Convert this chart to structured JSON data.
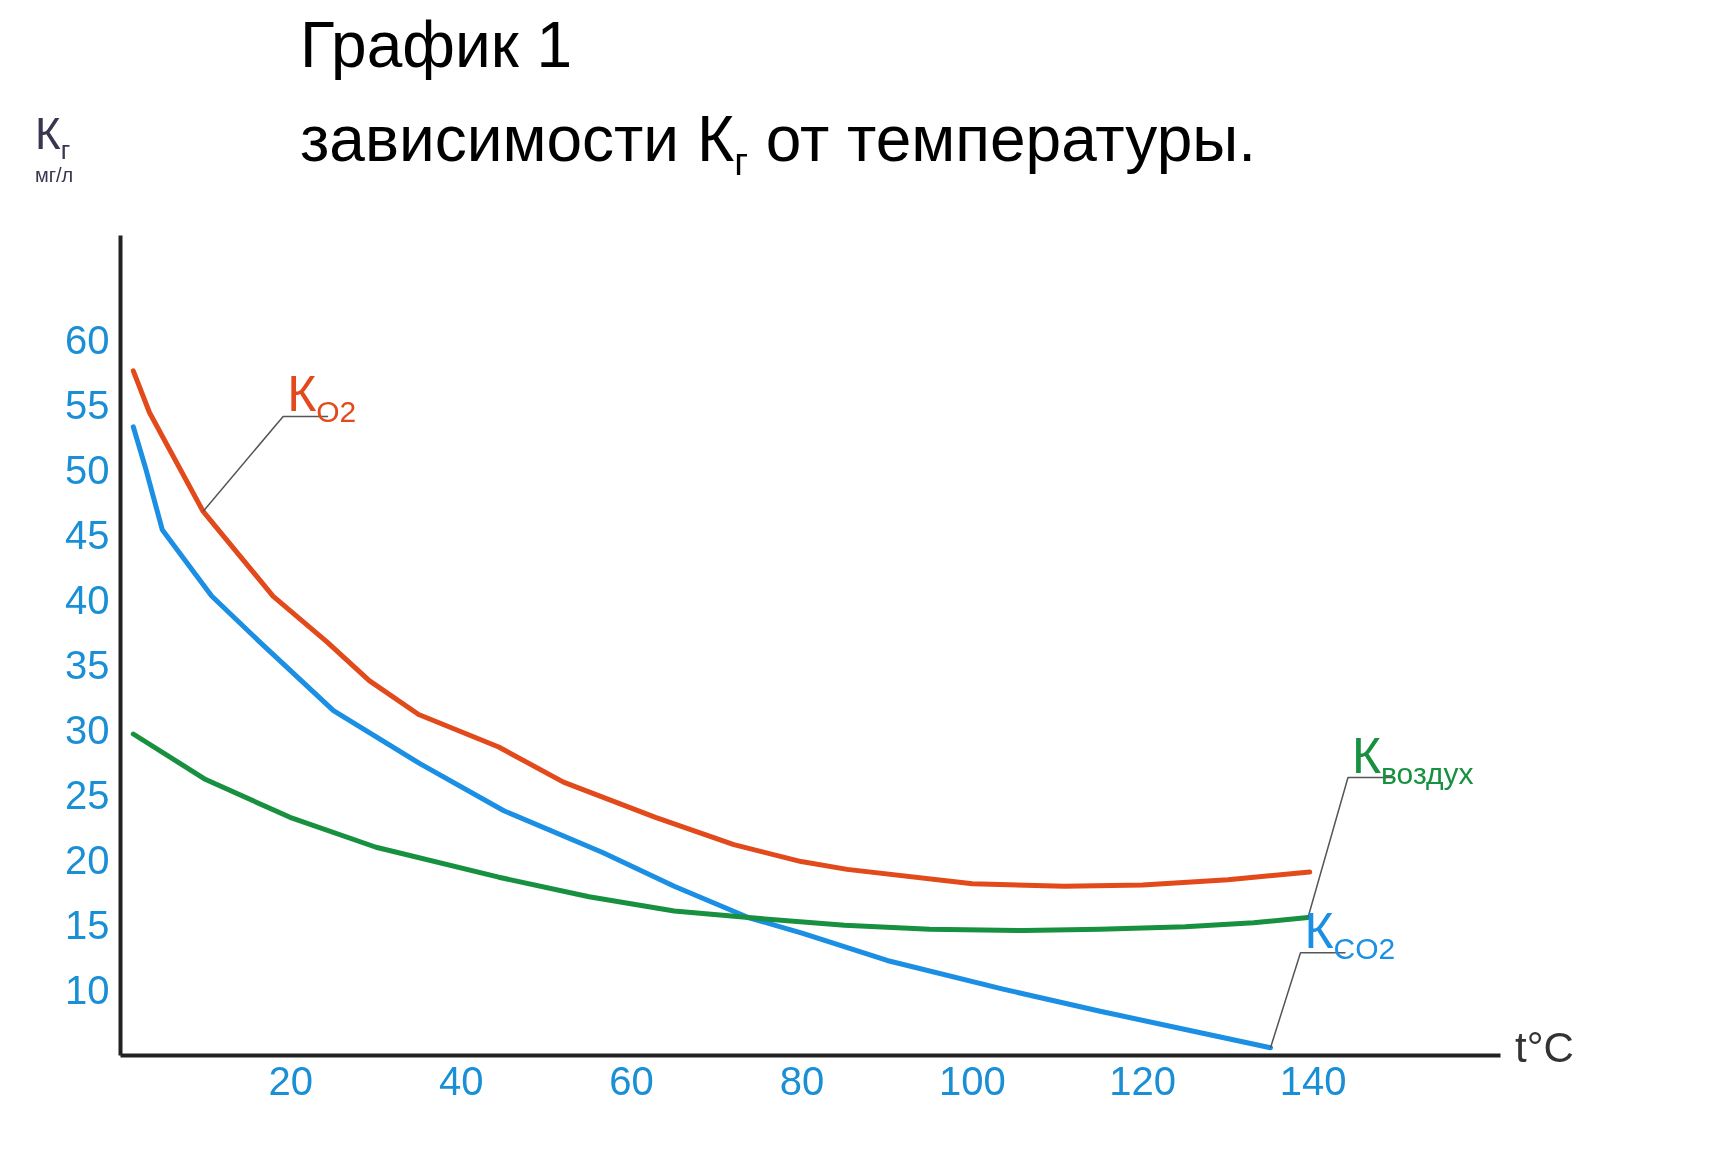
{
  "chart_data": {
    "type": "line",
    "title": "График 1",
    "subtitle": "зависимости К$_{г}$ от температуры.",
    "ylabel": "К$_{г}$\nмг/л",
    "xlabel": "t°C",
    "xlim": [
      0,
      162
    ],
    "ylim": [
      5,
      68
    ],
    "xticks": [
      20,
      40,
      60,
      80,
      100,
      120,
      140
    ],
    "yticks": [
      10,
      15,
      20,
      25,
      30,
      35,
      40,
      45,
      50,
      55,
      60
    ],
    "grid": false,
    "legend": false,
    "marker": "none",
    "line_style": "solid",
    "series": [
      {
        "name": "К$_{O2}$",
        "color": "#e2491b",
        "x": [
          1.5,
          3.4,
          9.7,
          17.9,
          24.2,
          29.2,
          35,
          44.4,
          52,
          62.8,
          72,
          79.9,
          85.3,
          100,
          110.8,
          120,
          130,
          139.6
        ],
        "values": [
          57.6,
          54.4,
          46.8,
          40.3,
          36.8,
          33.8,
          31.2,
          28.7,
          26,
          23.3,
          21.2,
          19.9,
          19.3,
          18.2,
          18.0,
          18.1,
          18.5,
          19.1
        ]
      },
      {
        "name": "К$_{CO2}$",
        "color": "#1a8fe3",
        "x": [
          1.5,
          3,
          4.9,
          10.7,
          16.3,
          25,
          35.2,
          45,
          56.6,
          65,
          73.7,
          80,
          90,
          103.6,
          115,
          125,
          135
        ],
        "values": [
          53.3,
          50,
          45.4,
          40.3,
          36.8,
          31.5,
          27.4,
          23.8,
          20.6,
          18,
          15.6,
          14.4,
          12.3,
          10.1,
          8.4,
          7,
          5.6
        ]
      },
      {
        "name": "К$_{воздух}$",
        "color": "#17903f",
        "x": [
          1.5,
          10,
          19.9,
          30,
          44.4,
          55,
          65,
          73.7,
          85,
          95,
          106,
          115,
          125,
          133,
          139.4
        ],
        "values": [
          29.7,
          26.2,
          23.3,
          21,
          18.7,
          17.2,
          16.1,
          15.6,
          15.0,
          14.7,
          14.6,
          14.7,
          14.9,
          15.2,
          15.6
        ]
      }
    ]
  }
}
